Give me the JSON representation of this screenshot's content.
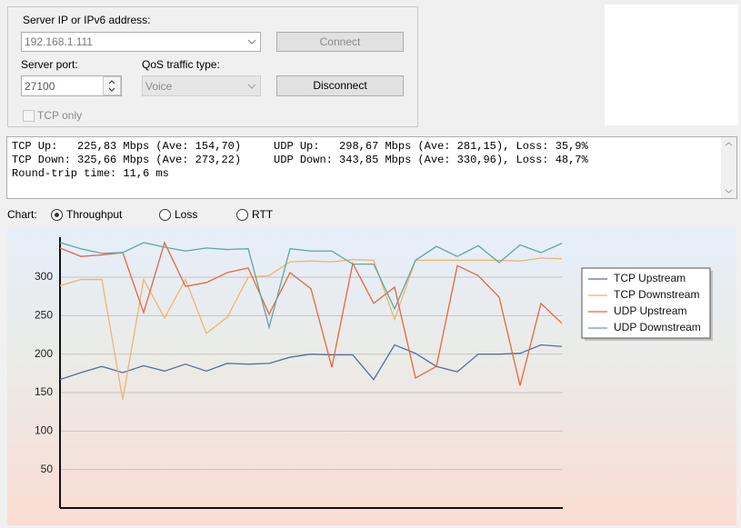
{
  "connection": {
    "server_label": "Server IP or IPv6 address:",
    "server_value": "192.168.1.111",
    "connect": "Connect",
    "port_label": "Server port:",
    "port_value": "27100",
    "qos_label": "QoS traffic type:",
    "qos_value": "Voice",
    "disconnect": "Disconnect",
    "tcp_only": "TCP only"
  },
  "stats": {
    "lines": [
      "TCP Up:   225,83 Mbps (Ave: 154,70)     UDP Up:   298,67 Mbps (Ave: 281,15), Loss: 35,9%",
      "TCP Down: 325,66 Mbps (Ave: 273,22)     UDP Down: 343,85 Mbps (Ave: 330,96), Loss: 48,7%",
      "Round-trip time: 11,6 ms"
    ]
  },
  "chart_selector": {
    "label": "Chart:",
    "options": [
      "Throughput",
      "Loss",
      "RTT"
    ],
    "selected": 0
  },
  "chart_data": {
    "type": "line",
    "ylim": [
      0,
      352
    ],
    "yticks": [
      50,
      100,
      150,
      200,
      250,
      300
    ],
    "grid": true,
    "legend": "upper right",
    "series": [
      {
        "name": "TCP Upstream",
        "color": "#52709c",
        "values": [
          167,
          176,
          184,
          176,
          185,
          178,
          187,
          178,
          188,
          187,
          188,
          196,
          200,
          199,
          199,
          167,
          212,
          201,
          184,
          177,
          200,
          200,
          201,
          212,
          210
        ]
      },
      {
        "name": "TCP Downstream",
        "color": "#f0b46c",
        "values": [
          289,
          297,
          297,
          141,
          297,
          247,
          297,
          227,
          248,
          300,
          302,
          320,
          321,
          320,
          323,
          322,
          245,
          322,
          322,
          322,
          322,
          322,
          321,
          325,
          324
        ]
      },
      {
        "name": "UDP Upstream",
        "color": "#e8663e",
        "values": [
          338,
          327,
          329,
          332,
          254,
          345,
          288,
          293,
          306,
          312,
          252,
          306,
          285,
          183,
          318,
          266,
          287,
          169,
          184,
          315,
          302,
          274,
          159,
          266,
          240
        ]
      },
      {
        "name": "UDP Downstream",
        "color": "#62a4a6",
        "values": [
          345,
          337,
          331,
          332,
          345,
          339,
          334,
          338,
          336,
          337,
          235,
          337,
          334,
          334,
          317,
          317,
          259,
          322,
          340,
          327,
          341,
          319,
          342,
          332,
          344
        ]
      }
    ]
  }
}
